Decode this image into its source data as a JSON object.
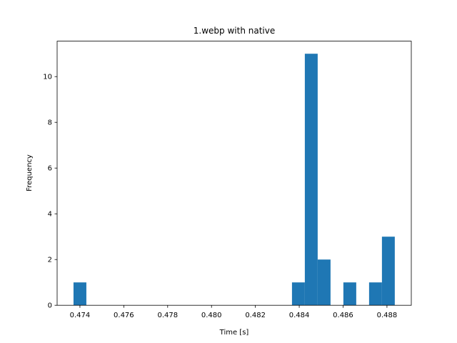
{
  "chart_data": {
    "type": "histogram",
    "title": "1.webp with native",
    "x_label": "Time [s]",
    "y_label": "Frequency",
    "bins": [
      0.473707,
      0.474293,
      0.474879,
      0.475465,
      0.476051,
      0.476637,
      0.477223,
      0.477809,
      0.478395,
      0.478981,
      0.479567,
      0.480153,
      0.480739,
      0.481325,
      0.481911,
      0.482497,
      0.483083,
      0.483669,
      0.484255,
      0.484841,
      0.485427,
      0.486013,
      0.486599,
      0.487185,
      0.487771,
      0.488357
    ],
    "values": [
      1,
      0,
      0,
      0,
      0,
      0,
      0,
      0,
      0,
      0,
      0,
      0,
      0,
      0,
      0,
      0,
      0,
      1,
      11,
      2,
      0,
      1,
      0,
      1,
      3
    ],
    "color": "#1f77b4",
    "xlim": [
      0.47296,
      0.48911
    ],
    "xticks": [
      0.474,
      0.476,
      0.478,
      {
        "value": 0.48,
        "label": "0.480"
      },
      0.482,
      0.484,
      0.486,
      0.488
    ],
    "ylim": [
      0,
      11.55
    ],
    "yticks": [
      0,
      2,
      4,
      6,
      8,
      10
    ]
  }
}
